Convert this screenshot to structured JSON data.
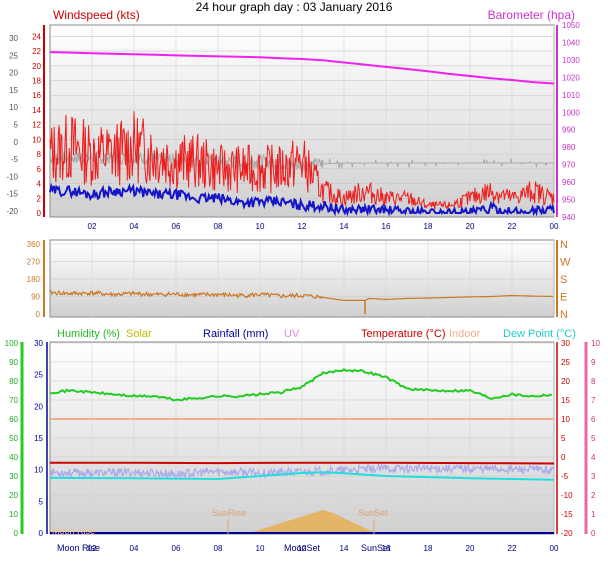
{
  "title": "24 hour graph day : 03 January 2016",
  "colors": {
    "wind_avg": "#1515c8",
    "wind_gust": "#ee1c1c",
    "wind_dir_grey": "#aaaaaa",
    "barometer": "#ee22ee",
    "direction": "#cc7722",
    "humidity": "#22cc22",
    "solar": "#cccc00",
    "rainfall": "#000099",
    "uv": "#dd88dd",
    "temperature": "#cc0000",
    "indoor": "#f0b090",
    "dewpoint": "#22dddd",
    "temp_scatter": "#aaaaee",
    "sun_fill": "#f0a020",
    "moon_label": "#f0c090"
  },
  "x_ticks": [
    "02",
    "04",
    "06",
    "08",
    "10",
    "12",
    "14",
    "16",
    "18",
    "20",
    "22",
    "00"
  ],
  "chart_data": [
    {
      "type": "line",
      "name": "wind-barometer",
      "labels": {
        "left": "Windspeed (kts)",
        "right": "Barometer (hpa)"
      },
      "x_range": [
        0,
        24
      ],
      "y_left_outer_ticks": [
        30,
        25,
        20,
        15,
        10,
        5,
        0,
        -5,
        -10,
        -15,
        -20
      ],
      "y_left_inner_ticks": [
        24,
        22,
        20,
        18,
        16,
        14,
        12,
        10,
        8,
        6,
        4,
        2,
        0
      ],
      "y_left_range": [
        0,
        25
      ],
      "y_right_ticks": [
        1050,
        1040,
        1030,
        1020,
        1010,
        1000,
        990,
        980,
        970,
        960,
        950,
        940
      ],
      "y_right_range": [
        940,
        1050
      ],
      "grid": true,
      "series": [
        {
          "key": "barometer",
          "axis": "right",
          "x": [
            0,
            1,
            2,
            3,
            4,
            5,
            6,
            7,
            8,
            9,
            10,
            11,
            12,
            13,
            14,
            15,
            16,
            17,
            18,
            19,
            20,
            21,
            22,
            23,
            24
          ],
          "values": [
            1034.5,
            1034.2,
            1033.8,
            1033.5,
            1033.2,
            1032.9,
            1032.6,
            1032.3,
            1032.0,
            1031.8,
            1031.5,
            1031.0,
            1030.5,
            1029.8,
            1028.5,
            1027.3,
            1026.0,
            1024.8,
            1023.5,
            1022.0,
            1020.8,
            1019.5,
            1018.5,
            1017.3,
            1016.5
          ]
        },
        {
          "key": "gust",
          "axis": "left",
          "x": [
            0,
            1,
            2,
            3,
            4,
            5,
            6,
            7,
            8,
            9,
            10,
            11,
            12,
            13,
            14,
            15,
            16,
            17,
            18,
            19,
            20,
            21,
            22,
            23,
            24
          ],
          "values": [
            8,
            9,
            8,
            8,
            9,
            8,
            7,
            7,
            6,
            6,
            6,
            6,
            7,
            3,
            2,
            3,
            2,
            2,
            1,
            1,
            2,
            3,
            2,
            3,
            2
          ]
        },
        {
          "key": "avg",
          "axis": "left",
          "x": [
            0,
            1,
            2,
            3,
            4,
            5,
            6,
            7,
            8,
            9,
            10,
            11,
            12,
            13,
            14,
            15,
            16,
            17,
            18,
            19,
            20,
            21,
            22,
            23,
            24
          ],
          "values": [
            3,
            3,
            2.5,
            3,
            3,
            2.5,
            2.5,
            2,
            2,
            1.5,
            1.5,
            1.5,
            1,
            1,
            0.3,
            0.5,
            0.3,
            0.2,
            0,
            0,
            0,
            0.6,
            0,
            0.3,
            0.5
          ]
        },
        {
          "key": "scatter",
          "axis": "left",
          "x": [
            0,
            2,
            4,
            6,
            8,
            10,
            12,
            14,
            16,
            18,
            20,
            22,
            24
          ],
          "values": [
            7.5,
            7.5,
            7.5,
            7.2,
            7,
            7,
            6.5,
            6.8,
            6.8,
            6.8,
            6.8,
            6.8,
            6.8
          ]
        }
      ]
    },
    {
      "type": "line",
      "name": "wind-direction",
      "x_range": [
        0,
        24
      ],
      "y_left_ticks": [
        360,
        270,
        180,
        90,
        0
      ],
      "y_range": [
        0,
        360
      ],
      "y_right_ticks": [
        "N",
        "W",
        "S",
        "E",
        "N"
      ],
      "grid": true,
      "series": [
        {
          "key": "direction",
          "x": [
            0,
            1,
            2,
            3,
            4,
            5,
            6,
            7,
            8,
            9,
            10,
            11,
            12,
            13,
            14,
            15,
            15.2,
            16,
            17,
            18,
            19,
            20,
            21,
            22,
            23,
            24
          ],
          "values": [
            110,
            105,
            108,
            100,
            105,
            100,
            102,
            98,
            100,
            95,
            100,
            92,
            95,
            85,
            70,
            70,
            80,
            75,
            80,
            82,
            85,
            88,
            90,
            95,
            92,
            90
          ]
        }
      ]
    },
    {
      "type": "line",
      "name": "humidity-temperature",
      "labels": {
        "humidity": "Humidity (%)",
        "solar": "Solar",
        "rainfall": "Rainfall (mm)",
        "uv": "UV",
        "temperature": "Temperature (°C)",
        "indoor": "Indoor",
        "dewpoint": "Dew Point (°C)"
      },
      "x_range": [
        0,
        24
      ],
      "y_humidity_ticks": [
        100,
        90,
        80,
        70,
        60,
        50,
        40,
        30,
        20,
        10,
        0
      ],
      "y_humidity_range": [
        0,
        100
      ],
      "y_rain_ticks": [
        30,
        25,
        20,
        15,
        10,
        5,
        0
      ],
      "y_temp_ticks": [
        30,
        25,
        20,
        15,
        10,
        5,
        0,
        -5,
        -10,
        -15,
        -20
      ],
      "y_temp_range": [
        -20,
        30
      ],
      "y_uv_ticks": [
        10,
        9,
        8,
        7,
        6,
        5,
        4,
        3,
        2,
        1,
        0
      ],
      "grid": true,
      "annotations": [
        "Moon Rise",
        "Moon Rise",
        "SunRise",
        "SunSet",
        "MoonSet",
        "SunSet"
      ],
      "series": [
        {
          "key": "humidity",
          "axis": "humidity",
          "x": [
            0,
            1,
            2,
            3,
            4,
            5,
            6,
            7,
            8,
            9,
            10,
            11,
            12,
            13,
            14,
            15,
            16,
            17,
            18,
            19,
            20,
            21,
            22,
            23,
            24
          ],
          "values": [
            74,
            75,
            74,
            73,
            72,
            72,
            70,
            71,
            72,
            72,
            73,
            74,
            77,
            84,
            86,
            85,
            82,
            76,
            75,
            75,
            75,
            71,
            73,
            72,
            73
          ]
        },
        {
          "key": "indoor",
          "axis": "temp",
          "x": [
            0,
            24
          ],
          "values": [
            10,
            10
          ]
        },
        {
          "key": "temperature",
          "axis": "temp",
          "x": [
            0,
            4,
            8,
            12,
            16,
            20,
            24
          ],
          "values": [
            -1.5,
            -1.5,
            -1.6,
            -1.5,
            -1.5,
            -1.6,
            -1.7
          ]
        },
        {
          "key": "dewpoint",
          "axis": "temp",
          "x": [
            0,
            4,
            8,
            12,
            13,
            14,
            16,
            18,
            20,
            22,
            24
          ],
          "values": [
            -5.5,
            -5.6,
            -5.8,
            -4.2,
            -4.0,
            -4.3,
            -5.0,
            -5.3,
            -5.6,
            -5.8,
            -6.0
          ]
        },
        {
          "key": "temp_scatter",
          "axis": "temp",
          "x": [
            0,
            2,
            4,
            6,
            8,
            10,
            12,
            14,
            16,
            18,
            20,
            22,
            24
          ],
          "values": [
            -4,
            -4.2,
            -4,
            -4.5,
            -3.8,
            -4.2,
            -3.9,
            -3.5,
            -3,
            -3,
            -3,
            -3.2,
            -3.5
          ]
        },
        {
          "key": "solar",
          "axis": "uv",
          "x": [
            9.5,
            10.5,
            11.5,
            12.5,
            13,
            13.5,
            14.5,
            15.5
          ],
          "values": [
            0,
            0.2,
            0.4,
            0.6,
            0.7,
            0.6,
            0.3,
            0
          ]
        }
      ]
    }
  ]
}
